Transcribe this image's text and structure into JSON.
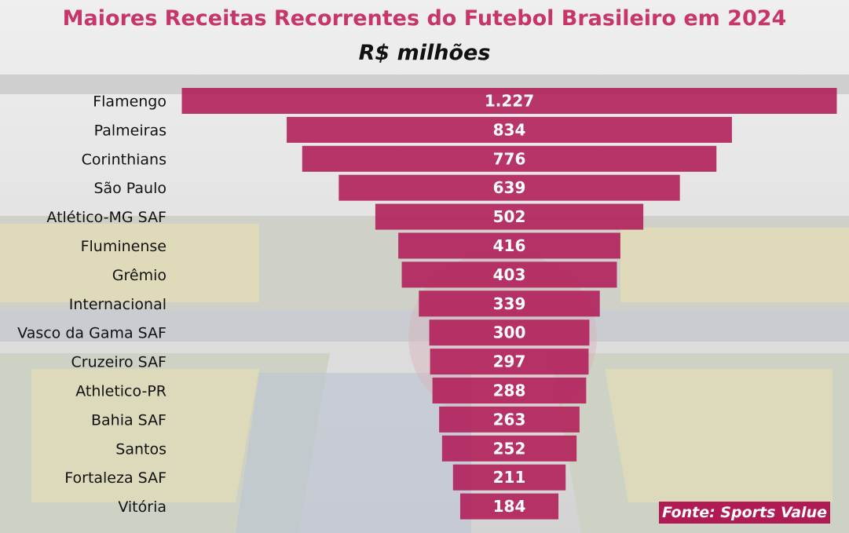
{
  "chart_data": {
    "type": "bar",
    "orientation": "horizontal-centered-funnel",
    "title": "Maiores Receitas Recorrentes do Futebol Brasileiro em 2024",
    "subtitle": "R$ milhões",
    "categories": [
      "Flamengo",
      "Palmeiras",
      "Corinthians",
      "São Paulo",
      "Atlético-MG SAF",
      "Fluminense",
      "Grêmio",
      "Internacional",
      "Vasco da Gama SAF",
      "Cruzeiro SAF",
      "Athletico-PR",
      "Bahia SAF",
      "Santos",
      "Fortaleza SAF",
      "Vitória"
    ],
    "values": [
      1227,
      834,
      776,
      639,
      502,
      416,
      403,
      339,
      300,
      297,
      288,
      263,
      252,
      211,
      184
    ],
    "value_labels": [
      "1.227",
      "834",
      "776",
      "639",
      "502",
      "416",
      "403",
      "339",
      "300",
      "297",
      "288",
      "263",
      "252",
      "211",
      "184"
    ],
    "bar_color": "#b01b56",
    "label_color": "#ffffff",
    "source": "Fonte: Sports Value",
    "grid": false,
    "legend": "none"
  }
}
